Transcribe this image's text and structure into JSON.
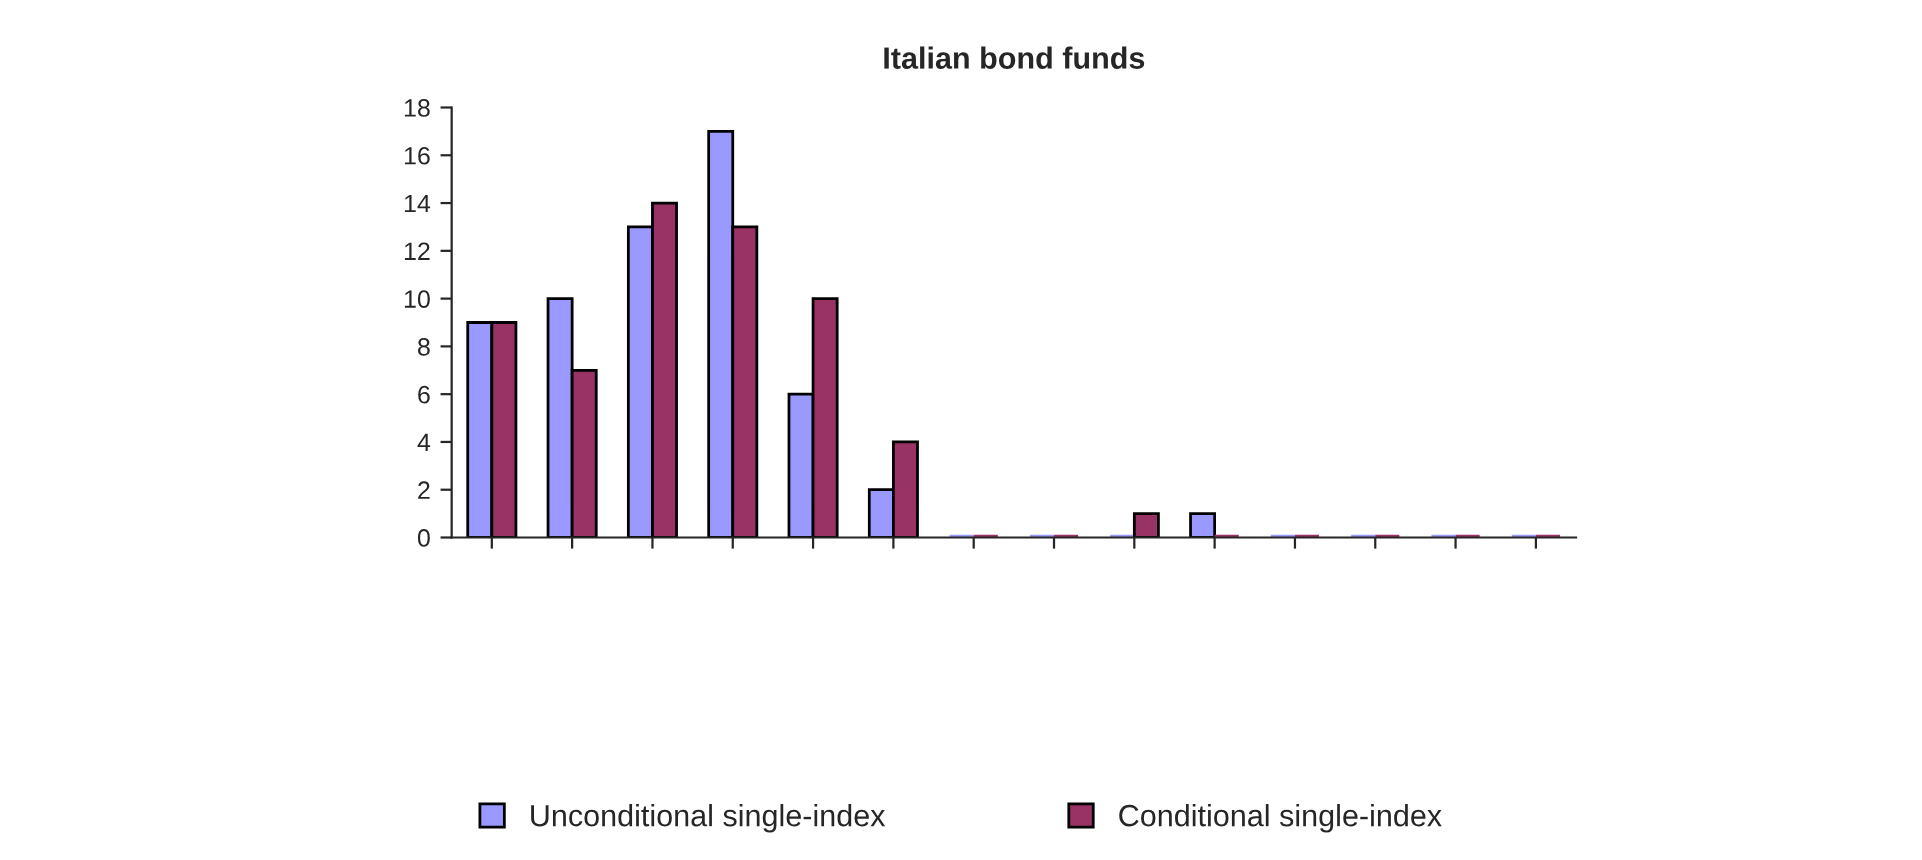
{
  "chart_data": {
    "type": "bar",
    "title": "Italian bond funds",
    "categories": [
      null,
      null,
      null,
      null,
      null,
      null,
      null,
      null,
      null,
      null,
      null,
      null,
      null,
      null
    ],
    "series": [
      {
        "name": "Unconditional single-index",
        "color": "#9999ff",
        "values": [
          9,
          10,
          13,
          17,
          6,
          2,
          0,
          0,
          0,
          1,
          0,
          0,
          0,
          0
        ]
      },
      {
        "name": "Conditional single-index",
        "color": "#993366",
        "values": [
          9,
          7,
          14,
          13,
          10,
          4,
          0,
          0,
          1,
          0,
          0,
          0,
          0,
          0
        ]
      }
    ],
    "ylim": [
      0,
      18
    ],
    "yticks": [
      0,
      2,
      4,
      6,
      8,
      10,
      12,
      14,
      16,
      18
    ],
    "grid": false,
    "legend": "bottom"
  }
}
